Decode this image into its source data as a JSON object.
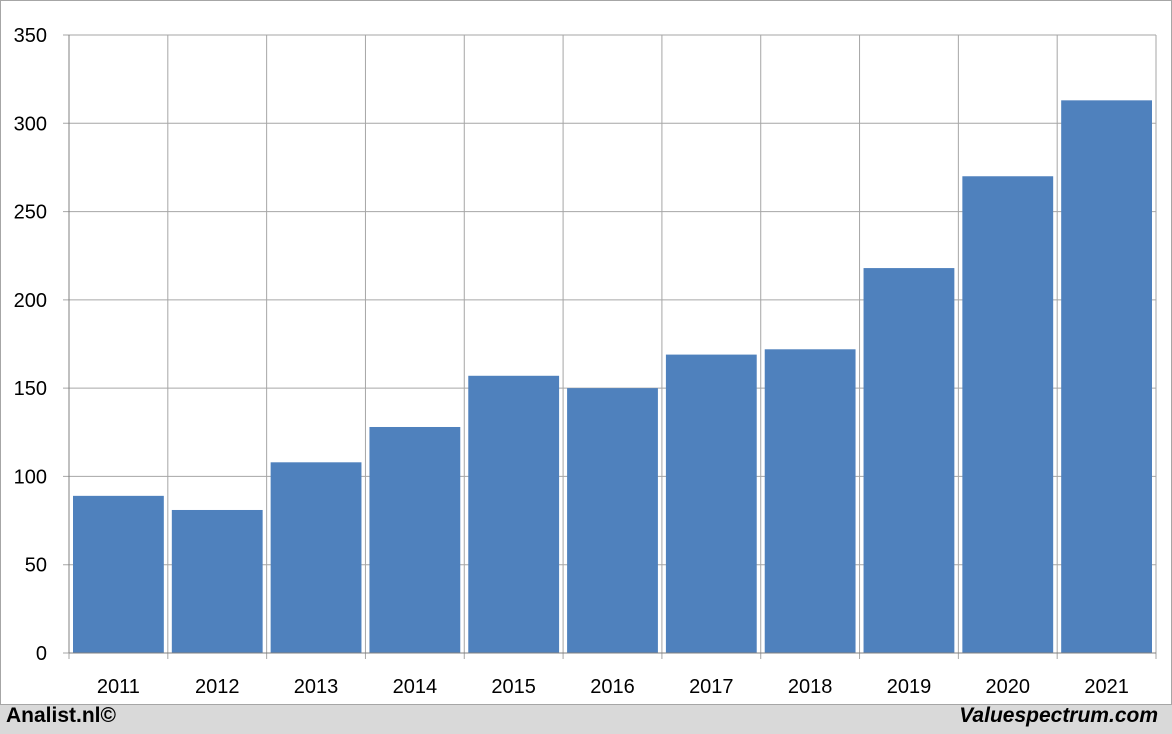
{
  "chart_data": {
    "type": "bar",
    "categories": [
      "2011",
      "2012",
      "2013",
      "2014",
      "2015",
      "2016",
      "2017",
      "2018",
      "2019",
      "2020",
      "2021"
    ],
    "values": [
      89,
      81,
      108,
      128,
      157,
      150,
      169,
      172,
      218,
      270,
      313
    ],
    "ylim": [
      0,
      350
    ],
    "yticks": [
      0,
      50,
      100,
      150,
      200,
      250,
      300,
      350
    ],
    "grid": true,
    "bar_color": "#4f81bd",
    "grid_color": "#a6a6a6"
  },
  "footer": {
    "left": "Analist.nl©",
    "right": "Valuespectrum.com"
  }
}
